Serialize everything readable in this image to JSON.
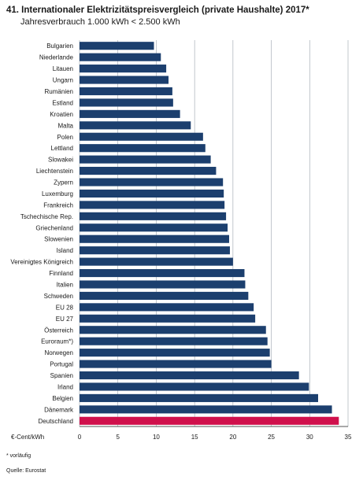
{
  "header": {
    "title": "41. Internationaler Elektrizitätspreisvergleich (private Haushalte) 2017*",
    "subtitle": "Jahresverbrauch 1.000 kWh < 2.500 kWh"
  },
  "footer": {
    "footnote": "* vorläufig",
    "source": "Quelle: Eurostat"
  },
  "colors": {
    "bar": "#1c3f6e",
    "highlight": "#d0104c",
    "grid": "#9aa3ad"
  },
  "chart_data": {
    "type": "bar",
    "orientation": "horizontal",
    "title": "41. Internationaler Elektrizitätspreisvergleich (private Haushalte) 2017*",
    "subtitle": "Jahresverbrauch 1.000 kWh < 2.500 kWh",
    "xlabel": "€-Cent/kWh",
    "ylabel": "",
    "xlim": [
      0,
      35
    ],
    "xticks": [
      0,
      5,
      10,
      15,
      20,
      25,
      30,
      35
    ],
    "grid": true,
    "highlighted_category": "Deutschland",
    "categories": [
      "Bulgarien",
      "Niederlande",
      "Litauen",
      "Ungarn",
      "Rumänien",
      "Estland",
      "Kroatien",
      "Malta",
      "Polen",
      "Lettland",
      "Slowakei",
      "Liechtenstein",
      "Zypern",
      "Luxemburg",
      "Frankreich",
      "Tschechische Rep.",
      "Griechenland",
      "Slowenien",
      "Island",
      "Vereinigtes Königreich",
      "Finnland",
      "Italien",
      "Schweden",
      "EU 28",
      "EU 27",
      "Österreich",
      "Euroraum*)",
      "Norwegen",
      "Portugal",
      "Spanien",
      "Irland",
      "Belgien",
      "Dänemark",
      "Deutschland"
    ],
    "values": [
      9.7,
      10.6,
      11.3,
      11.6,
      12.1,
      12.2,
      13.1,
      14.5,
      16.1,
      16.4,
      17.1,
      17.8,
      18.7,
      18.8,
      18.9,
      19.1,
      19.3,
      19.5,
      19.6,
      20.0,
      21.5,
      21.6,
      22.0,
      22.7,
      22.9,
      24.3,
      24.5,
      24.8,
      25.0,
      28.6,
      29.9,
      31.1,
      32.9,
      33.8
    ]
  }
}
